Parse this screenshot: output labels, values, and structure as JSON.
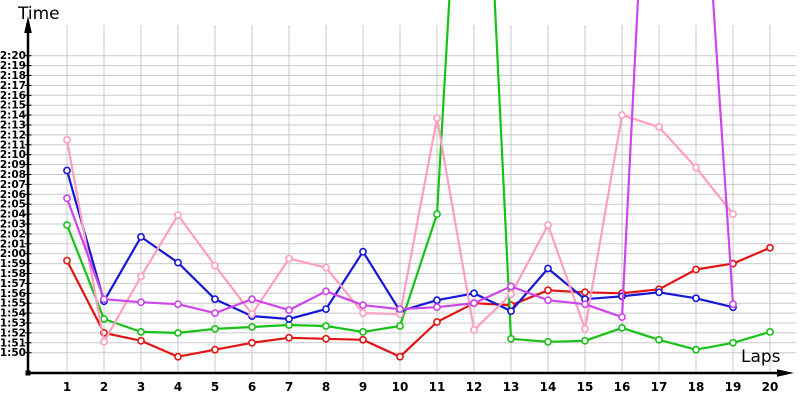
{
  "axes": {
    "y_title": "Time",
    "x_title": "Laps",
    "y_tick_labels": [
      "2:20",
      "2:19",
      "2:18",
      "2:17",
      "2:16",
      "2:15",
      "2:14",
      "2:13",
      "2:12",
      "2:11",
      "2:10",
      "2:09",
      "2:08",
      "2:07",
      "2:06",
      "2:05",
      "2:04",
      "2:03",
      "2:02",
      "2:01",
      "2:00",
      "1:59",
      "1:58",
      "1:57",
      "1:56",
      "1:55",
      "1:54",
      "1:53",
      "1:52",
      "1:51",
      "1:50"
    ],
    "x_tick_labels": [
      "1",
      "2",
      "3",
      "4",
      "5",
      "6",
      "7",
      "8",
      "9",
      "10",
      "11",
      "12",
      "13",
      "14",
      "15",
      "16",
      "17",
      "18",
      "19",
      "20"
    ]
  },
  "colors": {
    "background": "#ffffff",
    "grid": "#c9c9c9",
    "axis": "#000000",
    "red": "#e11414",
    "green": "#17c217",
    "blue": "#1616d6",
    "pink": "#ff9fc0",
    "magenta": "#cd46e8"
  },
  "chart_data": {
    "type": "line",
    "title": "",
    "xlabel": "Laps",
    "ylabel": "Time",
    "x": [
      1,
      2,
      3,
      4,
      5,
      6,
      7,
      8,
      9,
      10,
      11,
      12,
      13,
      14,
      15,
      16,
      17,
      18,
      19,
      20
    ],
    "y_axis": {
      "bottom_label": "1:50",
      "top_label": "2:20",
      "tick_step": "1 second",
      "grid": true
    },
    "value_format": "lap time in total seconds (1:50 = 110 s, 2:20 = 140 s); null = series has no point for that lap; off-chart spike values are estimates beyond the visible 2:20 top",
    "series": [
      {
        "name": "red",
        "color": "#e11414",
        "off_chart_laps": [],
        "values_seconds": [
          119.3,
          112.0,
          111.2,
          109.6,
          110.3,
          111.0,
          111.5,
          111.4,
          111.3,
          109.6,
          113.1,
          115.0,
          114.8,
          116.3,
          116.1,
          116.0,
          116.4,
          118.4,
          119.0,
          120.6
        ]
      },
      {
        "name": "green",
        "color": "#17c217",
        "off_chart_laps": [
          12
        ],
        "values_seconds": [
          122.9,
          113.4,
          112.1,
          112.0,
          112.4,
          112.6,
          112.8,
          112.7,
          112.1,
          112.7,
          124.0,
          189.0,
          111.4,
          111.1,
          111.2,
          112.5,
          111.3,
          110.3,
          111.0,
          112.1
        ]
      },
      {
        "name": "blue",
        "color": "#1616d6",
        "off_chart_laps": [],
        "values_seconds": [
          128.4,
          115.2,
          121.7,
          119.1,
          115.4,
          113.7,
          113.4,
          114.4,
          120.2,
          114.2,
          115.3,
          116.0,
          114.2,
          118.5,
          115.4,
          115.7,
          116.1,
          115.5,
          114.6,
          null
        ]
      },
      {
        "name": "pink",
        "color": "#ff9fc0",
        "off_chart_laps": [],
        "values_seconds": [
          131.5,
          111.1,
          117.7,
          123.9,
          118.8,
          113.9,
          119.5,
          118.6,
          114.0,
          113.9,
          133.7,
          112.3,
          115.9,
          122.9,
          112.4,
          134.0,
          132.8,
          128.7,
          124.0,
          null
        ]
      },
      {
        "name": "magenta",
        "color": "#cd46e8",
        "off_chart_laps": [
          17,
          18
        ],
        "values_seconds": [
          125.6,
          115.4,
          115.1,
          114.9,
          114.0,
          115.4,
          114.3,
          116.2,
          114.8,
          114.4,
          114.6,
          115.0,
          116.7,
          115.3,
          114.9,
          113.6,
          188.0,
          172.0,
          114.9,
          null
        ]
      }
    ]
  }
}
